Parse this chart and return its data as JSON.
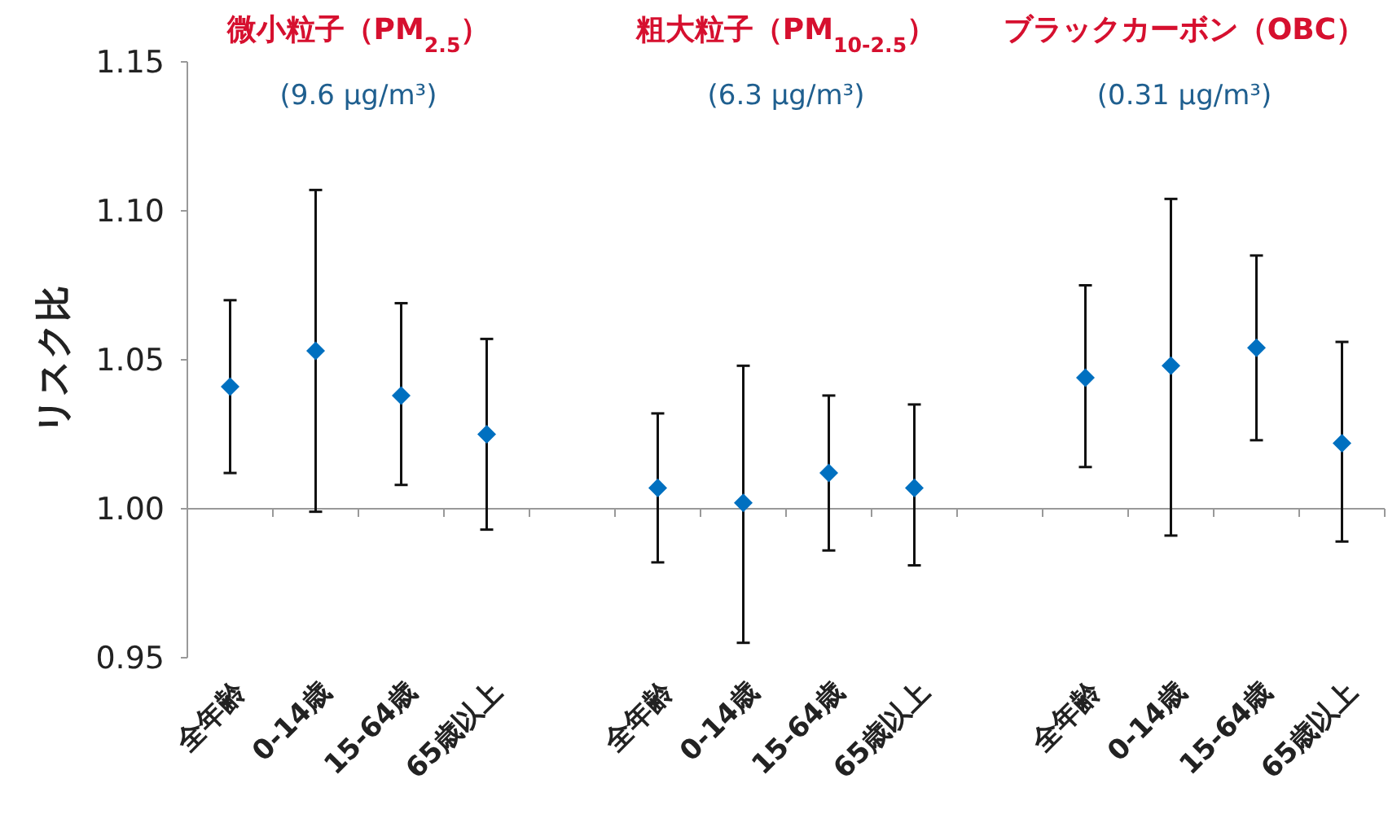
{
  "chart_data": {
    "type": "scatter",
    "ylabel": "リスク比",
    "categories": [
      "全年齢",
      "0-14歳",
      "15-64歳",
      "65歳以上",
      null,
      "全年齢",
      "0-14歳",
      "15-64歳",
      "65歳以上",
      null,
      "全年齢",
      "0-14歳",
      "15-64歳",
      "65歳以上"
    ],
    "series": [
      {
        "color": "#0070c0",
        "values": [
          1.041,
          1.053,
          1.038,
          1.025,
          null,
          1.007,
          1.002,
          1.012,
          1.007,
          null,
          1.044,
          1.048,
          1.054,
          1.022
        ],
        "errors": [
          [
            1.012,
            1.07
          ],
          [
            0.999,
            1.107
          ],
          [
            1.008,
            1.069
          ],
          [
            0.993,
            1.057
          ],
          null,
          [
            0.982,
            1.032
          ],
          [
            0.955,
            1.048
          ],
          [
            0.986,
            1.038
          ],
          [
            0.981,
            1.035
          ],
          null,
          [
            1.014,
            1.075
          ],
          [
            0.991,
            1.104
          ],
          [
            1.023,
            1.085
          ],
          [
            0.989,
            1.056
          ]
        ]
      }
    ],
    "marker": "diamond",
    "ylim": [
      0.95,
      1.15
    ],
    "yticks": [
      {
        "value": 0.95,
        "label": "0.95"
      },
      {
        "value": 1,
        "label": "1.00"
      },
      {
        "value": 1.05,
        "label": "1.05"
      },
      {
        "value": 1.1,
        "label": "1.10"
      },
      {
        "value": 1.15,
        "label": "1.15"
      }
    ],
    "ref_lines": [
      {
        "axis": "y",
        "value": 1
      }
    ],
    "annotations": [
      "微小粒子（PM$_{2.5}$）",
      "(9.6 μg/m³)",
      "粗大粒子（PM$_{10-2.5}$）",
      "(6.3 μg/m³)",
      "ブラックカーボン（OBC）",
      "(0.31 μg/m³)"
    ]
  }
}
